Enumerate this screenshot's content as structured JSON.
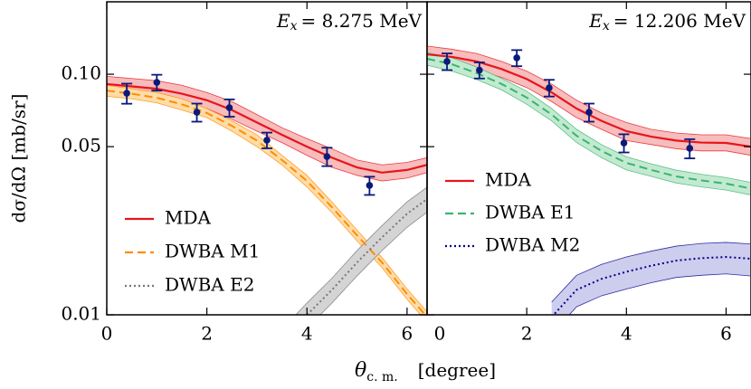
{
  "ylabel": "dσ/dΩ  [mb/sr]",
  "xlabel": {
    "symbol": "θ",
    "subscript": "c. m.",
    "unit": "[degree]"
  },
  "chart_data": [
    {
      "type": "line",
      "annotation": {
        "symbol": "E",
        "subscript": "x",
        "text": "= 8.275 MeV"
      },
      "log_y": true,
      "ylim": [
        0.01,
        0.2
      ],
      "yticks": [
        0.01,
        0.05,
        {
          "value": 0.1,
          "label": "0.10"
        }
      ],
      "xlim": [
        0,
        6.4
      ],
      "xticks": [
        0,
        2,
        4,
        6
      ],
      "legend": "lower left",
      "x": [
        0,
        0.5,
        1,
        1.5,
        2,
        2.5,
        3,
        3.5,
        4,
        4.5,
        5,
        5.5,
        6,
        6.4
      ],
      "series": [
        {
          "name": "MDA",
          "color": "#e8141c",
          "style": "solid",
          "band_color": "#f7bcbc",
          "values": [
            0.091,
            0.089,
            0.087,
            0.083,
            0.078,
            0.071,
            0.063,
            0.056,
            0.05,
            0.045,
            0.041,
            0.039,
            0.04,
            0.042
          ],
          "lower": [
            0.084,
            0.082,
            0.08,
            0.076,
            0.072,
            0.065,
            0.058,
            0.052,
            0.046,
            0.041,
            0.038,
            0.036,
            0.037,
            0.039
          ],
          "upper": [
            0.098,
            0.096,
            0.094,
            0.09,
            0.084,
            0.077,
            0.068,
            0.06,
            0.054,
            0.049,
            0.044,
            0.042,
            0.043,
            0.045
          ]
        },
        {
          "name": "DWBA M1",
          "color": "#ff8c00",
          "style": "dashed",
          "band_color": "#ffdca8",
          "values": [
            0.0855,
            0.083,
            0.0798,
            0.075,
            0.069,
            0.061,
            0.053,
            0.044,
            0.036,
            0.028,
            0.0214,
            0.0165,
            0.0122,
            0.0098
          ],
          "lower": [
            0.081,
            0.079,
            0.076,
            0.071,
            0.066,
            0.058,
            0.05,
            0.042,
            0.034,
            0.0266,
            0.0203,
            0.0157,
            0.0116,
            0.0093
          ],
          "upper": [
            0.09,
            0.087,
            0.084,
            0.079,
            0.072,
            0.064,
            0.056,
            0.046,
            0.038,
            0.0294,
            0.0225,
            0.0173,
            0.0128,
            0.0103
          ]
        },
        {
          "name": "DWBA E2",
          "color": "#777777",
          "style": "dotted",
          "band_color": "#d4d4d4",
          "values": [
            null,
            null,
            null,
            null,
            null,
            null,
            null,
            0.0078,
            0.01,
            0.0127,
            0.0165,
            0.021,
            0.0263,
            0.0303
          ],
          "lower": [
            null,
            null,
            null,
            null,
            null,
            null,
            null,
            0.0069,
            0.0088,
            0.0112,
            0.0145,
            0.0185,
            0.0231,
            0.0267
          ],
          "upper": [
            null,
            null,
            null,
            null,
            null,
            null,
            null,
            0.0087,
            0.0112,
            0.0142,
            0.0185,
            0.0235,
            0.0295,
            0.0339
          ]
        }
      ],
      "points": {
        "color": "#0a1a7a",
        "x": [
          0.4,
          1.0,
          1.8,
          2.45,
          3.2,
          4.4,
          5.25
        ],
        "values": [
          0.0834,
          0.0925,
          0.0695,
          0.0726,
          0.0532,
          0.0455,
          0.0345
        ],
        "errors": [
          0.008,
          0.007,
          0.006,
          0.006,
          0.004,
          0.004,
          0.003
        ]
      }
    },
    {
      "type": "line",
      "annotation": {
        "symbol": "E",
        "subscript": "x",
        "text": "= 12.206 MeV"
      },
      "log_y": true,
      "ylim": [
        0.01,
        0.2
      ],
      "yticks": [
        0.01,
        0.05,
        0.1
      ],
      "show_ytick_labels": false,
      "xlim": [
        0,
        6.5
      ],
      "xticks": [
        0,
        2,
        4,
        6
      ],
      "legend": "center left",
      "x": [
        0,
        0.5,
        1,
        1.5,
        2,
        2.5,
        3,
        3.5,
        4,
        4.5,
        5,
        5.5,
        6,
        6.5
      ],
      "series": [
        {
          "name": "MDA",
          "color": "#e8141c",
          "style": "solid",
          "band_color": "#f7bcbc",
          "values": [
            0.121,
            0.118,
            0.113,
            0.105,
            0.0955,
            0.084,
            0.072,
            0.064,
            0.058,
            0.055,
            0.053,
            0.052,
            0.0518,
            0.05
          ],
          "lower": [
            0.111,
            0.109,
            0.104,
            0.097,
            0.088,
            0.077,
            0.066,
            0.059,
            0.053,
            0.051,
            0.049,
            0.048,
            0.048,
            0.046
          ],
          "upper": [
            0.131,
            0.127,
            0.122,
            0.113,
            0.103,
            0.091,
            0.078,
            0.069,
            0.063,
            0.059,
            0.057,
            0.056,
            0.056,
            0.054
          ]
        },
        {
          "name": "DWBA E1",
          "color": "#3cb371",
          "style": "dashed",
          "band_color": "#c2ead0",
          "values": [
            0.116,
            0.11,
            0.101,
            0.091,
            0.08,
            0.068,
            0.0555,
            0.048,
            0.0428,
            0.04,
            0.0376,
            0.0362,
            0.0351,
            0.0335
          ],
          "lower": [
            0.109,
            0.103,
            0.095,
            0.086,
            0.075,
            0.064,
            0.052,
            0.045,
            0.04,
            0.0376,
            0.0353,
            0.034,
            0.033,
            0.0315
          ],
          "upper": [
            0.123,
            0.117,
            0.107,
            0.096,
            0.085,
            0.072,
            0.059,
            0.051,
            0.0454,
            0.0424,
            0.0399,
            0.0384,
            0.0372,
            0.0355
          ]
        },
        {
          "name": "DWBA M2",
          "color": "#00008b",
          "style": "dotted",
          "band_color": "#cdcdee",
          "values": [
            null,
            null,
            null,
            null,
            null,
            0.0098,
            0.0127,
            0.0141,
            0.0151,
            0.016,
            0.0168,
            0.0172,
            0.0174,
            0.0171
          ],
          "lower": [
            null,
            null,
            null,
            null,
            null,
            0.0083,
            0.0108,
            0.012,
            0.0128,
            0.0136,
            0.0143,
            0.0146,
            0.0148,
            0.0145
          ],
          "upper": [
            null,
            null,
            null,
            null,
            null,
            0.0113,
            0.0146,
            0.0162,
            0.0174,
            0.0184,
            0.0193,
            0.0198,
            0.02,
            0.0197
          ]
        }
      ],
      "points": {
        "color": "#0a1a7a",
        "x": [
          0.4,
          1.05,
          1.8,
          2.45,
          3.25,
          3.95,
          5.27
        ],
        "values": [
          0.113,
          0.104,
          0.117,
          0.0878,
          0.0695,
          0.0518,
          0.0492
        ],
        "errors": [
          0.009,
          0.008,
          0.009,
          0.007,
          0.006,
          0.0045,
          0.0045
        ]
      }
    }
  ]
}
